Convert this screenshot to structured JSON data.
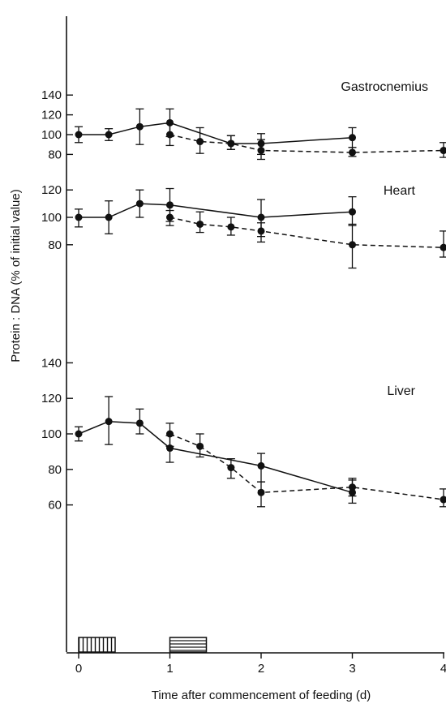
{
  "chart_data": {
    "type": "line",
    "ylabel": "Protein : DNA (% of initial value)",
    "xlabel": "Time after commencement of feeding (d)",
    "x_ticks": [
      0,
      1,
      2,
      3,
      4
    ],
    "xlim": [
      0,
      4
    ],
    "feeding_periods": [
      {
        "start": 0,
        "end": 0.4,
        "pattern": "vertical-hatch"
      },
      {
        "start": 1,
        "end": 1.4,
        "pattern": "horizontal-hatch"
      }
    ],
    "panels": [
      {
        "label": "Gastrocnemius",
        "ylim": [
          78,
          140
        ],
        "y_ticks": [
          80,
          100,
          120,
          140
        ],
        "series": [
          {
            "style": "solid",
            "points": [
              {
                "x": 0,
                "y": 100,
                "lo": 92,
                "hi": 108
              },
              {
                "x": 0.33,
                "y": 100,
                "lo": 94,
                "hi": 106
              },
              {
                "x": 0.67,
                "y": 108,
                "lo": 90,
                "hi": 126
              },
              {
                "x": 1,
                "y": 112,
                "lo": 98,
                "hi": 126
              },
              {
                "x": 1.67,
                "y": 91,
                "lo": 85,
                "hi": 99
              },
              {
                "x": 2,
                "y": 91,
                "lo": 80,
                "hi": 101
              },
              {
                "x": 3,
                "y": 97,
                "lo": 87,
                "hi": 107
              }
            ]
          },
          {
            "style": "dashed",
            "points": [
              {
                "x": 1,
                "y": 100,
                "lo": 89,
                "hi": 111
              },
              {
                "x": 1.33,
                "y": 93,
                "lo": 81,
                "hi": 107
              },
              {
                "x": 1.67,
                "y": 91,
                "lo": 85,
                "hi": 99
              },
              {
                "x": 2,
                "y": 84,
                "lo": 75,
                "hi": 95
              },
              {
                "x": 3,
                "y": 82,
                "lo": 78,
                "hi": 87
              },
              {
                "x": 4,
                "y": 84,
                "lo": 77,
                "hi": 92
              }
            ]
          }
        ]
      },
      {
        "label": "Heart",
        "ylim": [
          78,
          122
        ],
        "y_ticks": [
          80,
          100,
          120
        ],
        "series": [
          {
            "style": "solid",
            "points": [
              {
                "x": 0,
                "y": 100,
                "lo": 93,
                "hi": 106
              },
              {
                "x": 0.33,
                "y": 100,
                "lo": 88,
                "hi": 112
              },
              {
                "x": 0.67,
                "y": 110,
                "lo": 100,
                "hi": 120
              },
              {
                "x": 1,
                "y": 109,
                "lo": 97,
                "hi": 121
              },
              {
                "x": 2,
                "y": 100,
                "lo": 86,
                "hi": 113
              },
              {
                "x": 3,
                "y": 104,
                "lo": 94,
                "hi": 115
              }
            ]
          },
          {
            "style": "dashed",
            "points": [
              {
                "x": 1,
                "y": 100,
                "lo": 94,
                "hi": 105
              },
              {
                "x": 1.33,
                "y": 95,
                "lo": 89,
                "hi": 104
              },
              {
                "x": 1.67,
                "y": 93,
                "lo": 87,
                "hi": 100
              },
              {
                "x": 2,
                "y": 90,
                "lo": 82,
                "hi": 96
              },
              {
                "x": 3,
                "y": 80,
                "lo": 63,
                "hi": 95
              },
              {
                "x": 4,
                "y": 78,
                "lo": 71,
                "hi": 90
              }
            ]
          }
        ]
      },
      {
        "label": "Liver",
        "ylim": [
          60,
          140
        ],
        "y_ticks": [
          60,
          80,
          100,
          120,
          140
        ],
        "series": [
          {
            "style": "solid",
            "points": [
              {
                "x": 0,
                "y": 100,
                "lo": 96,
                "hi": 104
              },
              {
                "x": 0.33,
                "y": 107,
                "lo": 94,
                "hi": 121
              },
              {
                "x": 0.67,
                "y": 106,
                "lo": 100,
                "hi": 114
              },
              {
                "x": 1,
                "y": 92,
                "lo": 84,
                "hi": 99
              },
              {
                "x": 2,
                "y": 82,
                "lo": 73,
                "hi": 89
              },
              {
                "x": 3,
                "y": 67,
                "lo": 61,
                "hi": 74
              }
            ]
          },
          {
            "style": "dashed",
            "points": [
              {
                "x": 1,
                "y": 100,
                "lo": 93,
                "hi": 106
              },
              {
                "x": 1.33,
                "y": 93,
                "lo": 87,
                "hi": 100
              },
              {
                "x": 1.67,
                "y": 81,
                "lo": 75,
                "hi": 86
              },
              {
                "x": 2,
                "y": 67,
                "lo": 59,
                "hi": 73
              },
              {
                "x": 3,
                "y": 70,
                "lo": 65,
                "hi": 75
              },
              {
                "x": 4,
                "y": 63,
                "lo": 59,
                "hi": 69
              }
            ]
          }
        ]
      }
    ]
  }
}
